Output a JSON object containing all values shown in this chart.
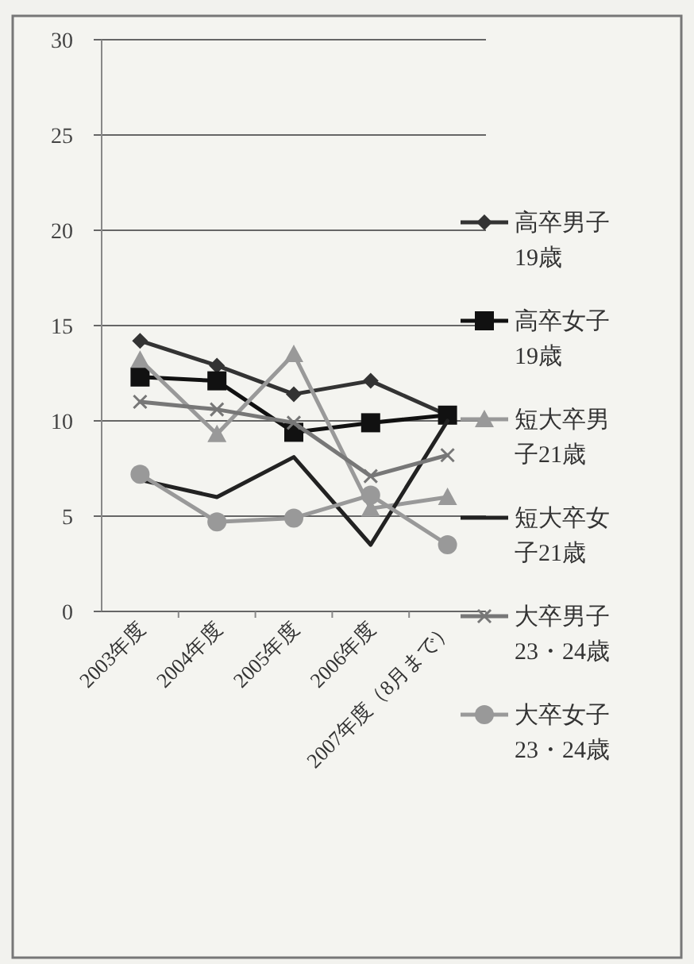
{
  "chart_data": {
    "type": "line",
    "categories": [
      "2003年度",
      "2004年度",
      "2005年度",
      "2006年度",
      "2007年度（8月まで）"
    ],
    "ylim": [
      0,
      30
    ],
    "yticks": [
      0,
      5,
      10,
      15,
      20,
      25,
      30
    ],
    "grid": "y",
    "legend": "right",
    "series": [
      {
        "name": "高卒男子19歳",
        "color": "#333333",
        "marker": "diamond",
        "values": [
          14.2,
          12.9,
          11.4,
          12.1,
          10.3
        ]
      },
      {
        "name": "高卒女子19歳",
        "color": "#111111",
        "marker": "square",
        "values": [
          12.3,
          12.1,
          9.4,
          9.9,
          10.3
        ]
      },
      {
        "name": "短大卒男子21歳",
        "color": "#999999",
        "marker": "triangle",
        "values": [
          13.2,
          9.3,
          13.5,
          5.4,
          6.0
        ]
      },
      {
        "name": "短大卒女子21歳",
        "color": "#222222",
        "marker": "none",
        "values": [
          6.9,
          6.0,
          8.1,
          3.5,
          10.0
        ]
      },
      {
        "name": "大卒男子23・24歳",
        "color": "#777777",
        "marker": "cross",
        "values": [
          11.0,
          10.6,
          9.9,
          7.1,
          8.2
        ]
      },
      {
        "name": "大卒女子23・24歳",
        "color": "#999999",
        "marker": "circle",
        "values": [
          7.2,
          4.7,
          4.9,
          6.1,
          3.5
        ]
      }
    ]
  }
}
